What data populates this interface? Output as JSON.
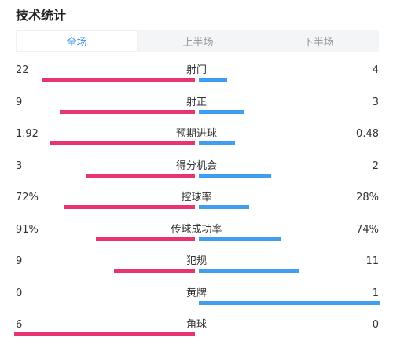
{
  "title": "技术统计",
  "tabs": [
    {
      "label": "全场",
      "active": true
    },
    {
      "label": "上半场",
      "active": false
    },
    {
      "label": "下半场",
      "active": false
    }
  ],
  "colors": {
    "home": "#e8356f",
    "away": "#3f9ef0",
    "tab_active": "#3d8ff0"
  },
  "stats": [
    {
      "label": "射门",
      "home": "22",
      "away": "4",
      "home_fill": 0.85,
      "away_fill": 0.155
    },
    {
      "label": "射正",
      "home": "9",
      "away": "3",
      "home_fill": 0.75,
      "away_fill": 0.25
    },
    {
      "label": "预期进球",
      "home": "1.92",
      "away": "0.48",
      "home_fill": 0.8,
      "away_fill": 0.2
    },
    {
      "label": "得分机会",
      "home": "3",
      "away": "2",
      "home_fill": 0.6,
      "away_fill": 0.4
    },
    {
      "label": "控球率",
      "home": "72%",
      "away": "28%",
      "home_fill": 0.72,
      "away_fill": 0.28
    },
    {
      "label": "传球成功率",
      "home": "91%",
      "away": "74%",
      "home_fill": 0.55,
      "away_fill": 0.45
    },
    {
      "label": "犯规",
      "home": "9",
      "away": "11",
      "home_fill": 0.45,
      "away_fill": 0.55
    },
    {
      "label": "黄牌",
      "home": "0",
      "away": "1",
      "home_fill": 0.0,
      "away_fill": 1.0
    },
    {
      "label": "角球",
      "home": "6",
      "away": "0",
      "home_fill": 1.0,
      "away_fill": 0.0
    }
  ]
}
